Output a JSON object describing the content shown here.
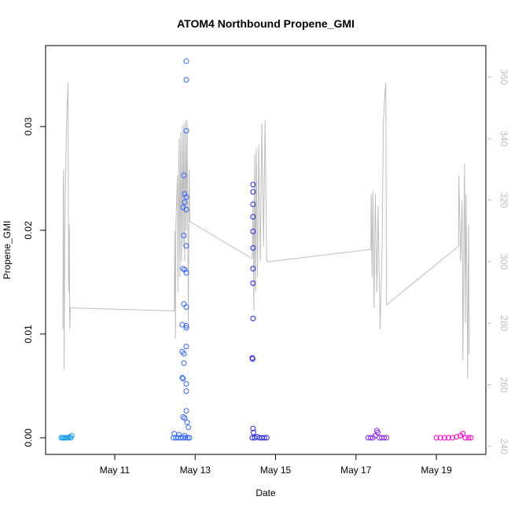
{
  "chart_data": {
    "type": "scatter",
    "title": "ATOM4 Northbound Propene_GMI",
    "xlabel": "Date",
    "ylabel": "Propene_GMI",
    "xlim": [
      9.28,
      20.23
    ],
    "xticks": [
      {
        "value": 11,
        "label": "May 11"
      },
      {
        "value": 13,
        "label": "May 13"
      },
      {
        "value": 15,
        "label": "May 15"
      },
      {
        "value": 17,
        "label": "May 17"
      },
      {
        "value": 19,
        "label": "May 19"
      }
    ],
    "ylim": [
      -0.0016,
      0.0378
    ],
    "yticks": [
      {
        "value": 0,
        "label": "0.00"
      },
      {
        "value": 0.01,
        "label": "0.01"
      },
      {
        "value": 0.02,
        "label": "0.02"
      },
      {
        "value": 0.03,
        "label": "0.03"
      }
    ],
    "y2lim": [
      237.4,
      370.2
    ],
    "y2ticks": [
      240,
      260,
      280,
      300,
      320,
      340,
      360
    ],
    "y2color": "#bebebe",
    "series": [
      {
        "color": "#1e9fe8",
        "x": [
          9.67,
          9.7,
          9.73,
          9.76,
          9.79,
          9.82,
          9.85,
          9.88,
          9.91,
          9.93
        ],
        "values": [
          0,
          0,
          0,
          0,
          0,
          0,
          0,
          0.0001,
          0,
          0.0002
        ]
      },
      {
        "color": "#3366f5",
        "x": [
          12.78,
          12.78,
          12.78,
          12.72,
          12.74,
          12.78,
          12.74,
          12.7,
          12.78,
          12.72,
          12.78,
          12.7,
          12.74,
          12.78,
          12.72,
          12.78,
          12.68,
          12.78,
          12.78,
          12.78,
          12.68,
          12.72,
          12.72,
          12.68,
          12.7,
          12.78,
          12.78,
          12.78,
          12.7,
          12.74,
          12.8,
          12.83,
          12.48,
          12.6,
          12.74,
          12.46,
          12.52,
          12.58,
          12.64,
          12.7,
          12.76,
          12.82,
          12.86
        ],
        "values": [
          0.0363,
          0.0345,
          0.0296,
          0.0253,
          0.0235,
          0.0232,
          0.0227,
          0.0222,
          0.022,
          0.0195,
          0.0185,
          0.0163,
          0.0162,
          0.0159,
          0.0129,
          0.0126,
          0.0109,
          0.0108,
          0.0106,
          0.0088,
          0.0083,
          0.0081,
          0.0072,
          0.0058,
          0.0057,
          0.0052,
          0.0045,
          0.0026,
          0.002,
          0.0019,
          0.0015,
          0.001,
          0.0004,
          0.0003,
          0.0002,
          0,
          0,
          0,
          0,
          0,
          0,
          0,
          0
        ]
      },
      {
        "color": "#2626e0",
        "x": [
          14.44,
          14.44,
          14.44,
          14.44,
          14.44,
          14.44,
          14.44,
          14.44,
          14.44,
          14.42,
          14.43,
          14.44,
          14.45,
          14.42,
          14.48,
          14.54,
          14.6,
          14.66,
          14.72,
          14.78
        ],
        "values": [
          0.0244,
          0.0237,
          0.0225,
          0.0213,
          0.0199,
          0.0183,
          0.0163,
          0.0149,
          0.0115,
          0.0077,
          0.0076,
          0.0009,
          0.0005,
          0,
          0,
          0.0001,
          0,
          0,
          0,
          0
        ]
      },
      {
        "color": "#8a2be2",
        "x": [
          17.3,
          17.36,
          17.42,
          17.48,
          17.52,
          17.54,
          17.58,
          17.64,
          17.7,
          17.76
        ],
        "values": [
          0,
          0,
          0,
          0.0002,
          0.0007,
          0.0005,
          0,
          0,
          0,
          0
        ]
      },
      {
        "color": "#ff00cc",
        "x": [
          19.0,
          19.1,
          19.2,
          19.3,
          19.4,
          19.5,
          19.6,
          19.66,
          19.72,
          19.8,
          19.86
        ],
        "values": [
          0,
          0,
          0,
          0,
          0,
          0.0001,
          0.0002,
          0.0004,
          0,
          0,
          0
        ]
      },
      {
        "type": "line",
        "axis": "y2",
        "color": "#bebebe",
        "x": [
          9.71,
          9.72,
          9.73,
          9.74,
          9.76,
          9.78,
          9.8,
          9.82,
          9.84,
          9.85,
          9.87,
          9.88,
          9.9,
          12.48,
          12.49,
          12.51,
          12.52,
          12.54,
          12.56,
          12.57,
          12.6,
          12.62,
          12.64,
          12.66,
          12.68,
          12.7,
          12.72,
          12.74,
          12.76,
          12.78,
          12.8,
          12.83,
          12.85,
          12.87,
          14.42,
          14.44,
          14.46,
          14.48,
          14.5,
          14.52,
          14.55,
          14.58,
          14.62,
          14.66,
          14.7,
          14.74,
          14.78,
          14.81,
          17.37,
          17.38,
          17.4,
          17.42,
          17.45,
          17.48,
          17.52,
          17.55,
          17.6,
          17.65,
          17.68,
          17.72,
          17.74,
          17.76,
          19.55,
          19.56,
          19.6,
          19.64,
          19.66,
          19.7,
          19.72,
          19.74,
          19.78,
          19.8,
          19.82
        ],
        "values": [
          278,
          325,
          330,
          265,
          310,
          330,
          345,
          352,
          358,
          290,
          312,
          278,
          285,
          284,
          310,
          275,
          312,
          320,
          328,
          290,
          340,
          295,
          342,
          300,
          344,
          305,
          345,
          300,
          346,
          310,
          346,
          280,
          330,
          313,
          301,
          320,
          284,
          335,
          290,
          337,
          295,
          338,
          300,
          345,
          305,
          346,
          300,
          300,
          304,
          322,
          295,
          323,
          285,
          322,
          290,
          318,
          278,
          305,
          345,
          355,
          358,
          286,
          305,
          328,
          300,
          320,
          268,
          332,
          280,
          322,
          262,
          312,
          270
        ]
      }
    ]
  }
}
